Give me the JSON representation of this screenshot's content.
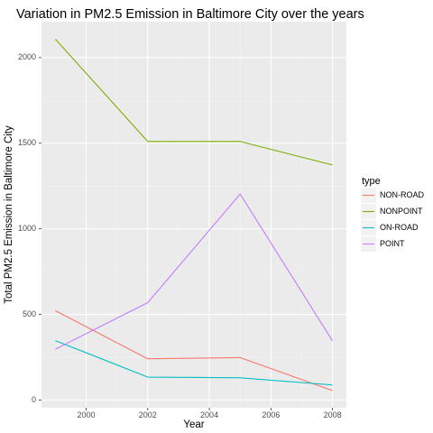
{
  "chart_data": {
    "type": "line",
    "title": "Variation in PM2.5 Emission in Baltimore City over the years",
    "xlabel": "Year",
    "ylabel": "Total PM2.5 Emission in Baltimore City",
    "x": [
      1999,
      2002,
      2005,
      2008
    ],
    "xlim": [
      1998.55,
      2008.45
    ],
    "ylim": [
      -45,
      2210
    ],
    "xticks": [
      2000,
      2002,
      2004,
      2006,
      2008
    ],
    "yticks": [
      0,
      500,
      1000,
      1500,
      2000
    ],
    "grid": true,
    "legend": {
      "title": "type",
      "position": "right"
    },
    "series": [
      {
        "name": "NON-ROAD",
        "color": "#F8766D",
        "values": [
          522,
          241,
          248,
          55
        ]
      },
      {
        "name": "NONPOINT",
        "color": "#7CAE00",
        "values": [
          2108,
          1510,
          1510,
          1373
        ]
      },
      {
        "name": "ON-ROAD",
        "color": "#00BFC4",
        "values": [
          347,
          134,
          130,
          88
        ]
      },
      {
        "name": "POINT",
        "color": "#C77CFF",
        "values": [
          297,
          569,
          1203,
          345
        ]
      }
    ]
  }
}
